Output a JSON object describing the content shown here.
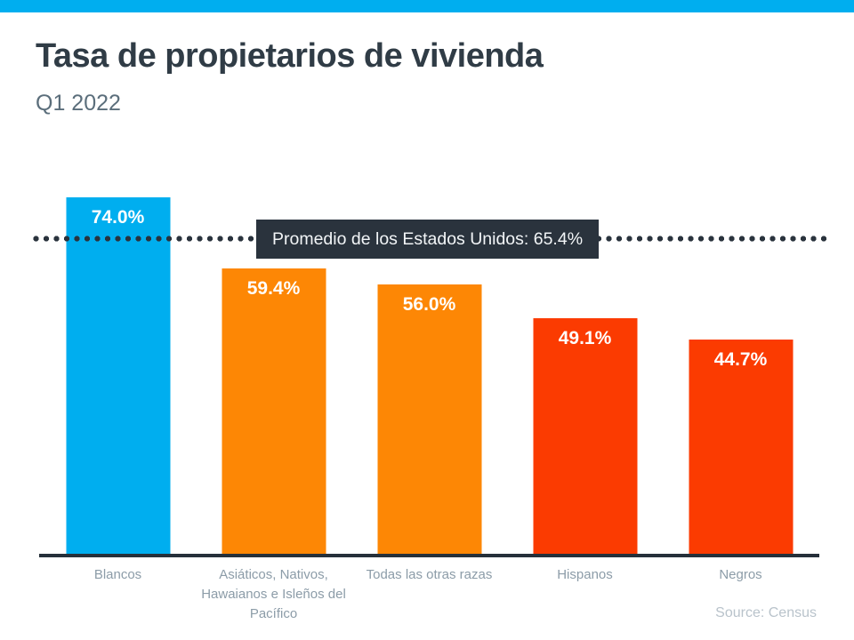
{
  "page": {
    "background": "#ffffff",
    "accent_color": "#00aeef"
  },
  "header": {
    "title": "Tasa de propietarios de vivienda",
    "subtitle": "Q1 2022"
  },
  "footer": {
    "source": "Source: Census"
  },
  "chart_data": {
    "type": "bar",
    "title": "Tasa de propietarios de vivienda",
    "subtitle": "Q1 2022",
    "categories": [
      "Blancos",
      "Asiáticos, Nativos, Hawaianos e Isleños del Pacífico",
      "Todas las otras razas",
      "Hispanos",
      "Negros"
    ],
    "values": [
      74.0,
      59.4,
      56.0,
      49.1,
      44.7
    ],
    "value_labels": [
      "74.0%",
      "59.4%",
      "56.0%",
      "49.1%",
      "44.7%"
    ],
    "bar_colors": [
      "#00aeef",
      "#fd8705",
      "#fd8705",
      "#fb3b01",
      "#fb3b01"
    ],
    "xlabel": "",
    "ylabel": "",
    "ylim": [
      0,
      80
    ],
    "grid": false,
    "legend": "none",
    "average_line": {
      "label": "Promedio de los Estados Unidos: 65.4%",
      "value": 65.4,
      "style": "dotted",
      "line_color": "#2a333d",
      "badge_background": "#2a333d",
      "badge_text_color": "#f2f5f7"
    },
    "axis_line_color": "#26303a",
    "category_label_color": "#8c9ca8",
    "source": "Source: Census"
  }
}
